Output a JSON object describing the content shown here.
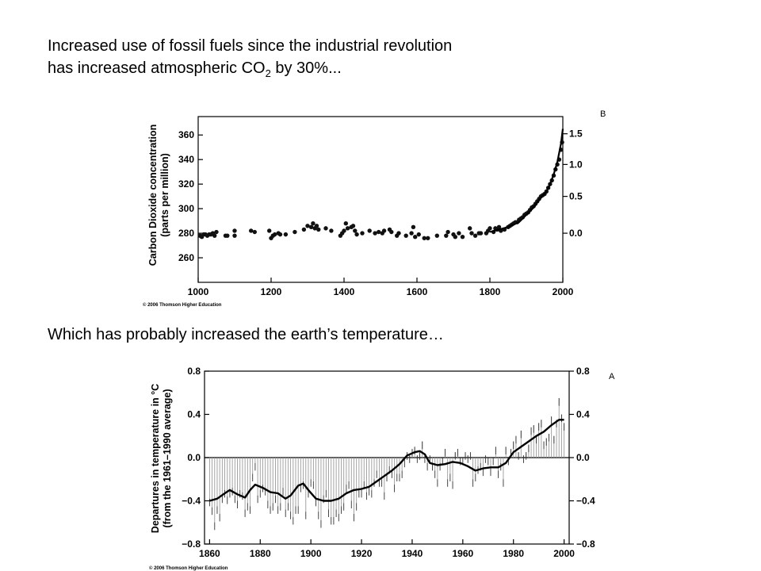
{
  "heading1": {
    "line1": "Increased use of fossil fuels since the industrial revolution",
    "line2_pre": "has increased atmospheric CO",
    "line2_sub": "2",
    "line2_post": " by 30%..."
  },
  "heading2": "Which has probably increased the earth’s temperature…",
  "chart_data": [
    {
      "type": "scatter",
      "panel_label": "B",
      "ylabel_line1": "Carbon Dioxide concentration",
      "ylabel_line2": "(parts per million)",
      "xlim": [
        1000,
        2000
      ],
      "ylim": [
        240,
        375
      ],
      "xticks": [
        1000,
        1200,
        1400,
        1600,
        1800,
        2000
      ],
      "yticks": [
        260,
        280,
        300,
        320,
        340,
        360
      ],
      "right_ticks": [
        {
          "label": "1.5",
          "ppm": 361
        },
        {
          "label": "1.0",
          "ppm": 336
        },
        {
          "label": "0.5",
          "ppm": 310
        },
        {
          "label": "0.0",
          "ppm": 280
        }
      ],
      "copyright": "© 2006 Thomson Higher Education",
      "points": [
        [
          1005,
          278
        ],
        [
          1010,
          277
        ],
        [
          1015,
          279
        ],
        [
          1020,
          279
        ],
        [
          1025,
          278
        ],
        [
          1030,
          279
        ],
        [
          1035,
          279
        ],
        [
          1040,
          280
        ],
        [
          1045,
          278
        ],
        [
          1050,
          281
        ],
        [
          1075,
          278
        ],
        [
          1080,
          278
        ],
        [
          1100,
          282
        ],
        [
          1100,
          278
        ],
        [
          1145,
          282
        ],
        [
          1155,
          281
        ],
        [
          1195,
          282
        ],
        [
          1200,
          276
        ],
        [
          1205,
          278
        ],
        [
          1210,
          279
        ],
        [
          1220,
          280
        ],
        [
          1225,
          279
        ],
        [
          1240,
          279
        ],
        [
          1265,
          281
        ],
        [
          1290,
          283
        ],
        [
          1300,
          286
        ],
        [
          1310,
          285
        ],
        [
          1315,
          288
        ],
        [
          1320,
          284
        ],
        [
          1325,
          286
        ],
        [
          1330,
          283
        ],
        [
          1350,
          284
        ],
        [
          1365,
          282
        ],
        [
          1390,
          278
        ],
        [
          1395,
          280
        ],
        [
          1400,
          282
        ],
        [
          1405,
          288
        ],
        [
          1410,
          284
        ],
        [
          1420,
          285
        ],
        [
          1425,
          286
        ],
        [
          1430,
          282
        ],
        [
          1435,
          279
        ],
        [
          1450,
          280
        ],
        [
          1470,
          282
        ],
        [
          1485,
          280
        ],
        [
          1495,
          281
        ],
        [
          1505,
          280
        ],
        [
          1510,
          282
        ],
        [
          1525,
          283
        ],
        [
          1530,
          281
        ],
        [
          1545,
          278
        ],
        [
          1550,
          280
        ],
        [
          1570,
          278
        ],
        [
          1585,
          280
        ],
        [
          1590,
          285
        ],
        [
          1595,
          277
        ],
        [
          1605,
          279
        ],
        [
          1620,
          276
        ],
        [
          1630,
          276
        ],
        [
          1655,
          278
        ],
        [
          1680,
          278
        ],
        [
          1685,
          281
        ],
        [
          1700,
          279
        ],
        [
          1705,
          277
        ],
        [
          1715,
          280
        ],
        [
          1725,
          277
        ],
        [
          1745,
          284
        ],
        [
          1750,
          280
        ],
        [
          1760,
          278
        ],
        [
          1770,
          280
        ],
        [
          1775,
          280
        ],
        [
          1790,
          280
        ],
        [
          1795,
          282
        ],
        [
          1800,
          284
        ],
        [
          1810,
          281
        ],
        [
          1815,
          284
        ],
        [
          1820,
          283
        ],
        [
          1825,
          285
        ],
        [
          1830,
          282
        ],
        [
          1840,
          283
        ],
        [
          1850,
          285
        ],
        [
          1855,
          286
        ],
        [
          1860,
          287
        ],
        [
          1865,
          288
        ],
        [
          1870,
          289
        ],
        [
          1875,
          289
        ],
        [
          1880,
          291
        ],
        [
          1885,
          292
        ],
        [
          1890,
          293
        ],
        [
          1895,
          295
        ],
        [
          1900,
          296
        ],
        [
          1905,
          297
        ],
        [
          1910,
          299
        ],
        [
          1915,
          301
        ],
        [
          1920,
          302
        ],
        [
          1925,
          304
        ],
        [
          1930,
          306
        ],
        [
          1935,
          308
        ],
        [
          1940,
          310
        ],
        [
          1945,
          311
        ],
        [
          1950,
          312
        ],
        [
          1955,
          314
        ],
        [
          1960,
          317
        ],
        [
          1965,
          320
        ],
        [
          1970,
          323
        ],
        [
          1975,
          327
        ],
        [
          1980,
          332
        ],
        [
          1985,
          336
        ],
        [
          1990,
          340
        ],
        [
          1995,
          348
        ],
        [
          1998,
          354
        ]
      ],
      "trend": [
        [
          1800,
          281
        ],
        [
          1850,
          285
        ],
        [
          1880,
          289
        ],
        [
          1900,
          295
        ],
        [
          1920,
          301
        ],
        [
          1940,
          309
        ],
        [
          1955,
          314
        ],
        [
          1965,
          320
        ],
        [
          1975,
          328
        ],
        [
          1985,
          338
        ],
        [
          1995,
          353
        ],
        [
          2000,
          365
        ]
      ]
    },
    {
      "type": "bar",
      "panel_label": "A",
      "ylabel_line1": "Departures in temperature in °C",
      "ylabel_line2": "(from the 1961–1990 average)",
      "xlim": [
        1858,
        2002
      ],
      "ylim": [
        -0.8,
        0.8
      ],
      "xticks": [
        1860,
        1880,
        1900,
        1920,
        1940,
        1960,
        1980,
        2000
      ],
      "yticks": [
        {
          "v": 0.8,
          "label": "0.8"
        },
        {
          "v": 0.4,
          "label": "0.4"
        },
        {
          "v": 0.0,
          "label": "0.0"
        },
        {
          "v": -0.4,
          "label": "−0.4"
        },
        {
          "v": -0.8,
          "label": "−0.8"
        }
      ],
      "copyright": "© 2006 Thomson Higher Education",
      "years": [
        1860,
        1861,
        1862,
        1863,
        1864,
        1865,
        1866,
        1867,
        1868,
        1869,
        1870,
        1871,
        1872,
        1873,
        1874,
        1875,
        1876,
        1877,
        1878,
        1879,
        1880,
        1881,
        1882,
        1883,
        1884,
        1885,
        1886,
        1887,
        1888,
        1889,
        1890,
        1891,
        1892,
        1893,
        1894,
        1895,
        1896,
        1897,
        1898,
        1899,
        1900,
        1901,
        1902,
        1903,
        1904,
        1905,
        1906,
        1907,
        1908,
        1909,
        1910,
        1911,
        1912,
        1913,
        1914,
        1915,
        1916,
        1917,
        1918,
        1919,
        1920,
        1921,
        1922,
        1923,
        1924,
        1925,
        1926,
        1927,
        1928,
        1929,
        1930,
        1931,
        1932,
        1933,
        1934,
        1935,
        1936,
        1937,
        1938,
        1939,
        1940,
        1941,
        1942,
        1943,
        1944,
        1945,
        1946,
        1947,
        1948,
        1949,
        1950,
        1951,
        1952,
        1953,
        1954,
        1955,
        1956,
        1957,
        1958,
        1959,
        1960,
        1961,
        1962,
        1963,
        1964,
        1965,
        1966,
        1967,
        1968,
        1969,
        1970,
        1971,
        1972,
        1973,
        1974,
        1975,
        1976,
        1977,
        1978,
        1979,
        1980,
        1981,
        1982,
        1983,
        1984,
        1985,
        1986,
        1987,
        1988,
        1989,
        1990,
        1991,
        1992,
        1993,
        1994,
        1995,
        1996,
        1997,
        1998,
        1999,
        2000
      ],
      "anomalies": [
        -0.38,
        -0.46,
        -0.6,
        -0.45,
        -0.52,
        -0.35,
        -0.3,
        -0.36,
        -0.3,
        -0.28,
        -0.35,
        -0.4,
        -0.3,
        -0.32,
        -0.48,
        -0.42,
        -0.45,
        -0.15,
        -0.05,
        -0.35,
        -0.3,
        -0.25,
        -0.28,
        -0.4,
        -0.45,
        -0.42,
        -0.35,
        -0.45,
        -0.42,
        -0.28,
        -0.48,
        -0.42,
        -0.5,
        -0.55,
        -0.45,
        -0.45,
        -0.25,
        -0.22,
        -0.5,
        -0.3,
        -0.2,
        -0.22,
        -0.38,
        -0.5,
        -0.58,
        -0.35,
        -0.3,
        -0.48,
        -0.55,
        -0.55,
        -0.48,
        -0.52,
        -0.45,
        -0.42,
        -0.25,
        -0.22,
        -0.4,
        -0.52,
        -0.42,
        -0.3,
        -0.3,
        -0.22,
        -0.32,
        -0.28,
        -0.3,
        -0.2,
        -0.12,
        -0.2,
        -0.2,
        -0.32,
        -0.15,
        -0.08,
        -0.12,
        -0.25,
        -0.15,
        -0.15,
        -0.12,
        -0.02,
        0.05,
        0.02,
        0.08,
        0.1,
        0.02,
        0.05,
        0.15,
        0.02,
        -0.05,
        0.02,
        -0.05,
        -0.12,
        -0.2,
        -0.05,
        0.0,
        0.08,
        -0.2,
        -0.15,
        -0.22,
        0.05,
        0.08,
        0.0,
        0.0,
        0.05,
        0.02,
        0.05,
        -0.2,
        -0.15,
        -0.08,
        -0.05,
        -0.1,
        0.02,
        0.0,
        -0.1,
        0.0,
        0.1,
        -0.12,
        -0.05,
        -0.2,
        0.1,
        0.0,
        0.08,
        0.15,
        0.2,
        0.05,
        0.25,
        0.02,
        0.05,
        0.12,
        0.28,
        0.3,
        0.2,
        0.32,
        0.35,
        0.15,
        0.18,
        0.22,
        0.38,
        0.2,
        0.35,
        0.55,
        0.4,
        0.32
      ],
      "smooth": [
        [
          1860,
          -0.4
        ],
        [
          1863,
          -0.38
        ],
        [
          1866,
          -0.33
        ],
        [
          1868,
          -0.3
        ],
        [
          1871,
          -0.34
        ],
        [
          1874,
          -0.37
        ],
        [
          1876,
          -0.3
        ],
        [
          1878,
          -0.25
        ],
        [
          1881,
          -0.28
        ],
        [
          1884,
          -0.32
        ],
        [
          1887,
          -0.33
        ],
        [
          1890,
          -0.38
        ],
        [
          1892,
          -0.35
        ],
        [
          1895,
          -0.26
        ],
        [
          1897,
          -0.24
        ],
        [
          1899,
          -0.3
        ],
        [
          1902,
          -0.38
        ],
        [
          1905,
          -0.4
        ],
        [
          1908,
          -0.4
        ],
        [
          1911,
          -0.38
        ],
        [
          1914,
          -0.33
        ],
        [
          1917,
          -0.3
        ],
        [
          1920,
          -0.29
        ],
        [
          1923,
          -0.27
        ],
        [
          1926,
          -0.22
        ],
        [
          1929,
          -0.17
        ],
        [
          1932,
          -0.12
        ],
        [
          1935,
          -0.06
        ],
        [
          1938,
          0.02
        ],
        [
          1941,
          0.05
        ],
        [
          1943,
          0.06
        ],
        [
          1945,
          0.03
        ],
        [
          1947,
          -0.05
        ],
        [
          1950,
          -0.07
        ],
        [
          1953,
          -0.06
        ],
        [
          1956,
          -0.04
        ],
        [
          1959,
          -0.05
        ],
        [
          1962,
          -0.08
        ],
        [
          1965,
          -0.12
        ],
        [
          1968,
          -0.1
        ],
        [
          1971,
          -0.09
        ],
        [
          1974,
          -0.09
        ],
        [
          1977,
          -0.05
        ],
        [
          1980,
          0.05
        ],
        [
          1983,
          0.1
        ],
        [
          1986,
          0.15
        ],
        [
          1989,
          0.2
        ],
        [
          1992,
          0.24
        ],
        [
          1995,
          0.3
        ],
        [
          1998,
          0.35
        ],
        [
          2000,
          0.35
        ]
      ]
    }
  ]
}
